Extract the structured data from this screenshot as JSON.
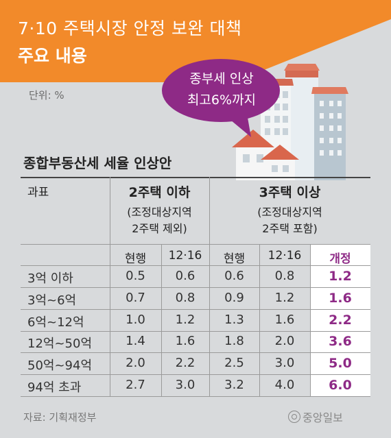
{
  "header": {
    "title_line1": "7·10 주택시장 안정 보완 대책",
    "title_line2": "주요 내용"
  },
  "unit_label": "단위: %",
  "bubble": {
    "line1": "종부세 인상",
    "line2": "최고6%까지"
  },
  "footer": {
    "source": "자료: 기획재정부",
    "logo_text": "중앙일보"
  },
  "colors": {
    "banner": "#f28a2a",
    "bubble": "#8e2a86",
    "revised_text": "#8e2a86",
    "background": "#d8dadc"
  },
  "chart_data": {
    "type": "table",
    "title": "종합부동산세 세율 인상안",
    "row_header_label": "과표",
    "groups": [
      {
        "name": "2주택 이하",
        "sub_line1": "(조정대상지역",
        "sub_line2": "2주택 제외)",
        "columns": [
          "현행",
          "12·16"
        ]
      },
      {
        "name": "3주택 이상",
        "sub_line1": "(조정대상지역",
        "sub_line2": "2주택 포함)",
        "columns": [
          "현행",
          "12·16",
          "개정"
        ]
      }
    ],
    "rows": [
      {
        "label": "3억 이하",
        "values": [
          "0.5",
          "0.6",
          "0.6",
          "0.8",
          "1.2"
        ]
      },
      {
        "label": "3억~6억",
        "values": [
          "0.7",
          "0.8",
          "0.9",
          "1.2",
          "1.6"
        ]
      },
      {
        "label": "6억~12억",
        "values": [
          "1.0",
          "1.2",
          "1.3",
          "1.6",
          "2.2"
        ]
      },
      {
        "label": "12억~50억",
        "values": [
          "1.4",
          "1.6",
          "1.8",
          "2.0",
          "3.6"
        ]
      },
      {
        "label": "50억~94억",
        "values": [
          "2.0",
          "2.2",
          "2.5",
          "3.0",
          "5.0"
        ]
      },
      {
        "label": "94억 초과",
        "values": [
          "2.7",
          "3.0",
          "3.2",
          "4.0",
          "6.0"
        ]
      }
    ]
  }
}
